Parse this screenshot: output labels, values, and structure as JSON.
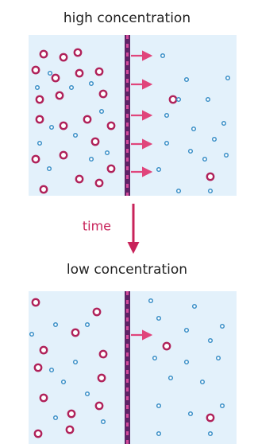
{
  "top_label": "high concentration",
  "arrow_label": "time",
  "bottom_label": "low concentration"
}
